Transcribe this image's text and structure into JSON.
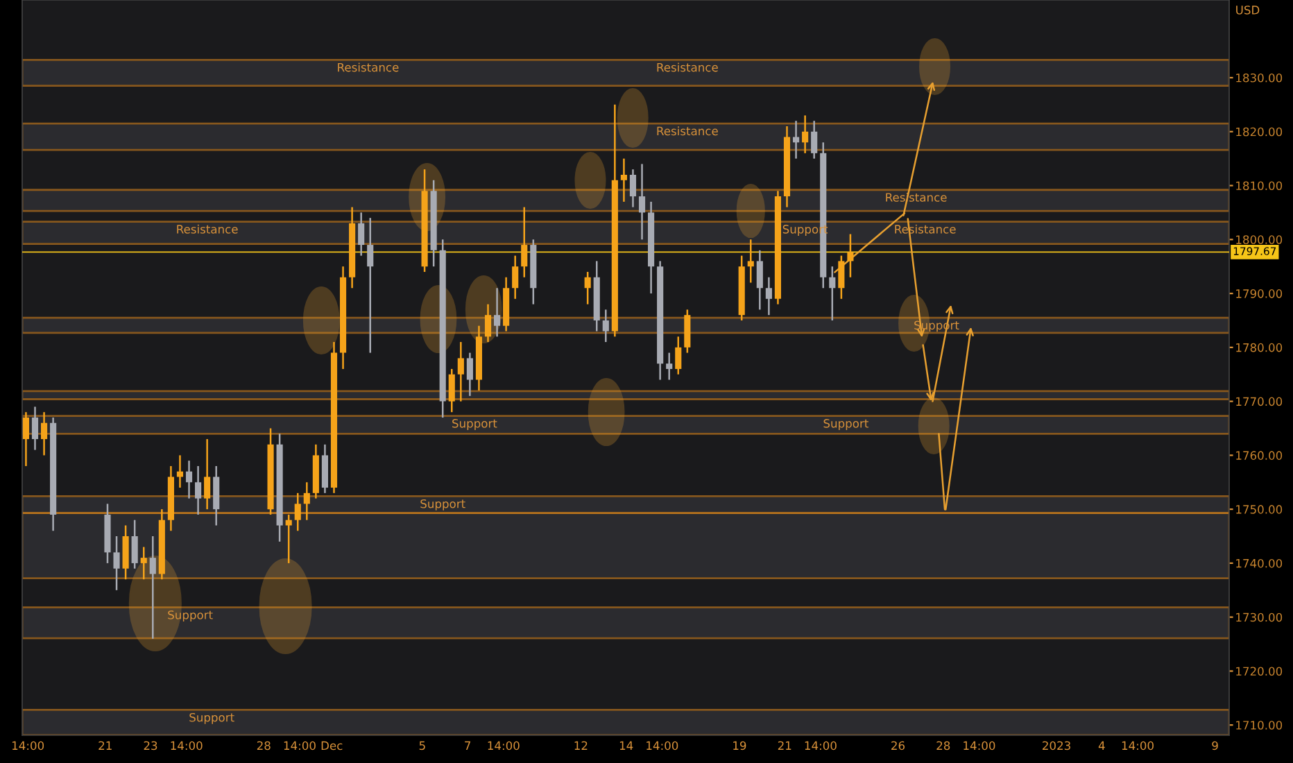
{
  "chart_data": {
    "type": "candlestick",
    "ylabel": "USD",
    "grid": false,
    "x": [
      "2022-11-17T12:00",
      "2022-11-17T21:36",
      "2022-11-18T07:12",
      "2022-11-18T16:48",
      "2022-11-21T02:24",
      "2022-11-21T12:00",
      "2022-11-21T21:36",
      "2022-11-22T07:12",
      "2022-11-22T16:48",
      "2022-11-23T02:24",
      "2022-11-23T12:00",
      "2022-11-23T21:36",
      "2022-11-24T07:12",
      "2022-11-24T16:48",
      "2022-11-25T02:24",
      "2022-11-25T12:00",
      "2022-11-25T21:36",
      "2022-11-28T07:12",
      "2022-11-28T16:48",
      "2022-11-29T02:24",
      "2022-11-29T12:00",
      "2022-11-29T21:36",
      "2022-11-30T07:12",
      "2022-11-30T16:48",
      "2022-12-01T02:24",
      "2022-12-01T12:00",
      "2022-12-01T21:36",
      "2022-12-02T07:12",
      "2022-12-02T16:48",
      "2022-12-05T02:24",
      "2022-12-05T12:00",
      "2022-12-05T21:36",
      "2022-12-06T07:12",
      "2022-12-06T16:48",
      "2022-12-07T02:24",
      "2022-12-07T12:00",
      "2022-12-07T21:36",
      "2022-12-08T07:12",
      "2022-12-08T16:48",
      "2022-12-09T02:24",
      "2022-12-09T12:00",
      "2022-12-09T21:36",
      "2022-12-12T07:12",
      "2022-12-12T16:48",
      "2022-12-13T02:24",
      "2022-12-13T12:00",
      "2022-12-13T21:36",
      "2022-12-14T07:12",
      "2022-12-14T16:48",
      "2022-12-15T02:24",
      "2022-12-15T12:00",
      "2022-12-15T21:36",
      "2022-12-16T07:12",
      "2022-12-16T16:48",
      "2022-12-19T02:24",
      "2022-12-19T12:00",
      "2022-12-19T21:36",
      "2022-12-20T07:12",
      "2022-12-20T16:48",
      "2022-12-21T02:24",
      "2022-12-21T12:00",
      "2022-12-21T21:36",
      "2022-12-22T07:12",
      "2022-12-22T16:48",
      "2022-12-23T02:24",
      "2022-12-23T12:00",
      "2022-12-23T21:36"
    ],
    "ohlc": [
      [
        1763,
        1768,
        1758,
        1767
      ],
      [
        1767,
        1769,
        1761,
        1763
      ],
      [
        1763,
        1768,
        1760,
        1766
      ],
      [
        1766,
        1767,
        1746,
        1749
      ],
      [
        1749,
        1751,
        1740,
        1742
      ],
      [
        1742,
        1745,
        1735,
        1739
      ],
      [
        1739,
        1747,
        1737,
        1745
      ],
      [
        1745,
        1748,
        1739,
        1740
      ],
      [
        1740,
        1743,
        1737,
        1741
      ],
      [
        1741,
        1745,
        1726,
        1738
      ],
      [
        1738,
        1750,
        1737,
        1748
      ],
      [
        1748,
        1758,
        1746,
        1756
      ],
      [
        1756,
        1760,
        1754,
        1757
      ],
      [
        1757,
        1759,
        1752,
        1755
      ],
      [
        1755,
        1758,
        1749,
        1752
      ],
      [
        1752,
        1763,
        1750,
        1756
      ],
      [
        1756,
        1758,
        1747,
        1750
      ],
      [
        1750,
        1765,
        1749,
        1762
      ],
      [
        1762,
        1764,
        1744,
        1747
      ],
      [
        1747,
        1749,
        1740,
        1748
      ],
      [
        1748,
        1753,
        1746,
        1751
      ],
      [
        1751,
        1755,
        1748,
        1753
      ],
      [
        1753,
        1762,
        1752,
        1760
      ],
      [
        1760,
        1762,
        1753,
        1754
      ],
      [
        1754,
        1781,
        1753,
        1779
      ],
      [
        1779,
        1795,
        1776,
        1793
      ],
      [
        1793,
        1806,
        1791,
        1803
      ],
      [
        1803,
        1805,
        1797,
        1799
      ],
      [
        1799,
        1804,
        1779,
        1795
      ],
      [
        1795,
        1813,
        1794,
        1809
      ],
      [
        1809,
        1811,
        1795,
        1798
      ],
      [
        1798,
        1800,
        1767,
        1770
      ],
      [
        1770,
        1776,
        1768,
        1775
      ],
      [
        1775,
        1781,
        1770,
        1778
      ],
      [
        1778,
        1779,
        1771,
        1774
      ],
      [
        1774,
        1784,
        1772,
        1782
      ],
      [
        1782,
        1788,
        1781,
        1786
      ],
      [
        1786,
        1791,
        1782,
        1784
      ],
      [
        1784,
        1793,
        1783,
        1791
      ],
      [
        1791,
        1797,
        1789,
        1795
      ],
      [
        1795,
        1806,
        1793,
        1799
      ],
      [
        1799,
        1800,
        1788,
        1791
      ],
      [
        1791,
        1794,
        1788,
        1793
      ],
      [
        1793,
        1796,
        1783,
        1785
      ],
      [
        1785,
        1787,
        1781,
        1783
      ],
      [
        1783,
        1825,
        1782,
        1811
      ],
      [
        1811,
        1815,
        1807,
        1812
      ],
      [
        1812,
        1813,
        1806,
        1808
      ],
      [
        1808,
        1814,
        1800,
        1805
      ],
      [
        1805,
        1807,
        1790,
        1795
      ],
      [
        1795,
        1796,
        1774,
        1777
      ],
      [
        1777,
        1779,
        1774,
        1776
      ],
      [
        1776,
        1782,
        1775,
        1780
      ],
      [
        1780,
        1787,
        1779,
        1786
      ],
      [
        1786,
        1797,
        1785,
        1795
      ],
      [
        1795,
        1800,
        1792,
        1796
      ],
      [
        1796,
        1798,
        1787,
        1791
      ],
      [
        1791,
        1793,
        1786,
        1789
      ],
      [
        1789,
        1809,
        1788,
        1808
      ],
      [
        1808,
        1821,
        1806,
        1819
      ],
      [
        1819,
        1822,
        1815,
        1818
      ],
      [
        1818,
        1823,
        1816,
        1820
      ],
      [
        1820,
        1822,
        1815,
        1816
      ],
      [
        1816,
        1818,
        1791,
        1793
      ],
      [
        1793,
        1795,
        1785,
        1791
      ],
      [
        1791,
        1797,
        1789,
        1796
      ],
      [
        1796,
        1801,
        1793,
        1797.67
      ]
    ],
    "colors": [
      "#f5a31a",
      "#a8abb3",
      "#f5a31a",
      "#a8abb3",
      "#a8abb3",
      "#a8abb3",
      "#f5a31a",
      "#a8abb3",
      "#f5a31a",
      "#a8abb3",
      "#f5a31a",
      "#f5a31a",
      "#f5a31a",
      "#a8abb3",
      "#a8abb3",
      "#f5a31a",
      "#a8abb3",
      "#f5a31a",
      "#a8abb3",
      "#f5a31a",
      "#f5a31a",
      "#f5a31a",
      "#f5a31a",
      "#a8abb3",
      "#f5a31a",
      "#f5a31a",
      "#f5a31a",
      "#a8abb3",
      "#a8abb3",
      "#f5a31a",
      "#a8abb3",
      "#a8abb3",
      "#f5a31a",
      "#f5a31a",
      "#a8abb3",
      "#f5a31a",
      "#f5a31a",
      "#a8abb3",
      "#f5a31a",
      "#f5a31a",
      "#f5a31a",
      "#a8abb3",
      "#f5a31a",
      "#a8abb3",
      "#a8abb3",
      "#f5a31a",
      "#f5a31a",
      "#a8abb3",
      "#a8abb3",
      "#a8abb3",
      "#a8abb3",
      "#a8abb3",
      "#f5a31a",
      "#f5a31a",
      "#f5a31a",
      "#f5a31a",
      "#a8abb3",
      "#a8abb3",
      "#f5a31a",
      "#f5a31a",
      "#a8abb3",
      "#f5a31a",
      "#a8abb3",
      "#a8abb3",
      "#a8abb3",
      "#f5a31a",
      "#f5a31a"
    ],
    "xlim": [
      "2022-11-17T08:00",
      "2023-01-09T15:00"
    ],
    "ylim": [
      1708.1,
      1844.4
    ],
    "xticks": [
      {
        "value": "2022-11-17T14:00",
        "label": "14:00"
      },
      {
        "value": "2022-11-21",
        "label": "21"
      },
      {
        "value": "2022-11-23",
        "label": "23"
      },
      {
        "value": "2022-11-24T14:00",
        "label": "14:00"
      },
      {
        "value": "2022-11-28",
        "label": "28"
      },
      {
        "value": "2022-11-29T14:00",
        "label": "14:00"
      },
      {
        "value": "2022-12-01",
        "label": "Dec"
      },
      {
        "value": "2022-12-05",
        "label": "5"
      },
      {
        "value": "2022-12-07",
        "label": "7"
      },
      {
        "value": "2022-12-08T14:00",
        "label": "14:00"
      },
      {
        "value": "2022-12-12",
        "label": "12"
      },
      {
        "value": "2022-12-14",
        "label": "14"
      },
      {
        "value": "2022-12-15T14:00",
        "label": "14:00"
      },
      {
        "value": "2022-12-19",
        "label": "19"
      },
      {
        "value": "2022-12-21",
        "label": "21"
      },
      {
        "value": "2022-12-22T14:00",
        "label": "14:00"
      },
      {
        "value": "2022-12-26",
        "label": "26"
      },
      {
        "value": "2022-12-28",
        "label": "28"
      },
      {
        "value": "2022-12-29T14:00",
        "label": "14:00"
      },
      {
        "value": "2023-01-02",
        "label": "2023"
      },
      {
        "value": "2023-01-04",
        "label": "4"
      },
      {
        "value": "2023-01-05T14:00",
        "label": "14:00"
      },
      {
        "value": "2023-01-09",
        "label": "9"
      }
    ],
    "yticks": [
      {
        "value": 1710,
        "label": "1710.00"
      },
      {
        "value": 1720,
        "label": "1720.00"
      },
      {
        "value": 1730,
        "label": "1730.00"
      },
      {
        "value": 1740,
        "label": "1740.00"
      },
      {
        "value": 1750,
        "label": "1750.00"
      },
      {
        "value": 1760,
        "label": "1760.00"
      },
      {
        "value": 1770,
        "label": "1770.00"
      },
      {
        "value": 1780,
        "label": "1780.00"
      },
      {
        "value": 1790,
        "label": "1790.00"
      },
      {
        "value": 1800,
        "label": "1800.00"
      },
      {
        "value": 1810,
        "label": "1810.00"
      },
      {
        "value": 1820,
        "label": "1820.00"
      },
      {
        "value": 1830,
        "label": "1830.00"
      }
    ],
    "bands": [
      {
        "axis": "y",
        "from": 1828.5,
        "to": 1833.3,
        "color": "#e08a1e"
      },
      {
        "axis": "y",
        "from": 1816.6,
        "to": 1821.5,
        "color": "#e08a1e"
      },
      {
        "axis": "y",
        "from": 1805.3,
        "to": 1809.2,
        "color": "#e08a1e"
      },
      {
        "axis": "y",
        "from": 1799.2,
        "to": 1803.3,
        "color": "#e08a1e"
      },
      {
        "axis": "y",
        "from": 1782.7,
        "to": 1785.5,
        "color": "#e08a1e"
      },
      {
        "axis": "y",
        "from": 1770.4,
        "to": 1771.9,
        "color": "#e08a1e"
      },
      {
        "axis": "y",
        "from": 1764.0,
        "to": 1767.3,
        "color": "#e08a1e"
      },
      {
        "axis": "y",
        "from": 1749.3,
        "to": 1752.4,
        "color": "#e08a1e"
      },
      {
        "axis": "y",
        "from": 1737.2,
        "to": 1749.3,
        "color": "#e08a1e"
      },
      {
        "axis": "y",
        "from": 1726.1,
        "to": 1731.8,
        "color": "#e08a1e"
      },
      {
        "axis": "y",
        "from": 1708.1,
        "to": 1712.8,
        "color": "#e08a1e"
      }
    ],
    "ref_lines": [
      {
        "axis": "y",
        "value": 1797.67,
        "label": "1797.67",
        "color": "#f5c518"
      }
    ],
    "annotations": [
      {
        "text": "Resistance",
        "x": "2022-12-02T14:24",
        "y": 1833.3
      },
      {
        "text": "Resistance",
        "x": "2022-12-16T16:48",
        "y": 1833.3
      },
      {
        "text": "Resistance",
        "x": "2022-12-16T16:48",
        "y": 1821.5
      },
      {
        "text": "Resistance",
        "x": "2022-11-25T12:00",
        "y": 1803.3
      },
      {
        "text": "Resistance",
        "x": "2022-12-26T19:12",
        "y": 1809.2
      },
      {
        "text": "Support",
        "x": "2022-12-21T21:36",
        "y": 1803.3
      },
      {
        "text": "Resistance",
        "x": "2022-12-27T04:48",
        "y": 1803.3
      },
      {
        "text": "Support",
        "x": "2022-12-27T16:48",
        "y": 1785.5
      },
      {
        "text": "Support",
        "x": "2022-12-07T07:12",
        "y": 1767.3
      },
      {
        "text": "Support",
        "x": "2022-12-23T16:48",
        "y": 1767.3
      },
      {
        "text": "Support",
        "x": "2022-12-05T21:36",
        "y": 1752.4
      },
      {
        "text": "Support",
        "x": "2022-11-24T18:00",
        "y": 1731.8
      },
      {
        "text": "Support",
        "x": "2022-11-25T16:48",
        "y": 1712.8
      }
    ]
  }
}
